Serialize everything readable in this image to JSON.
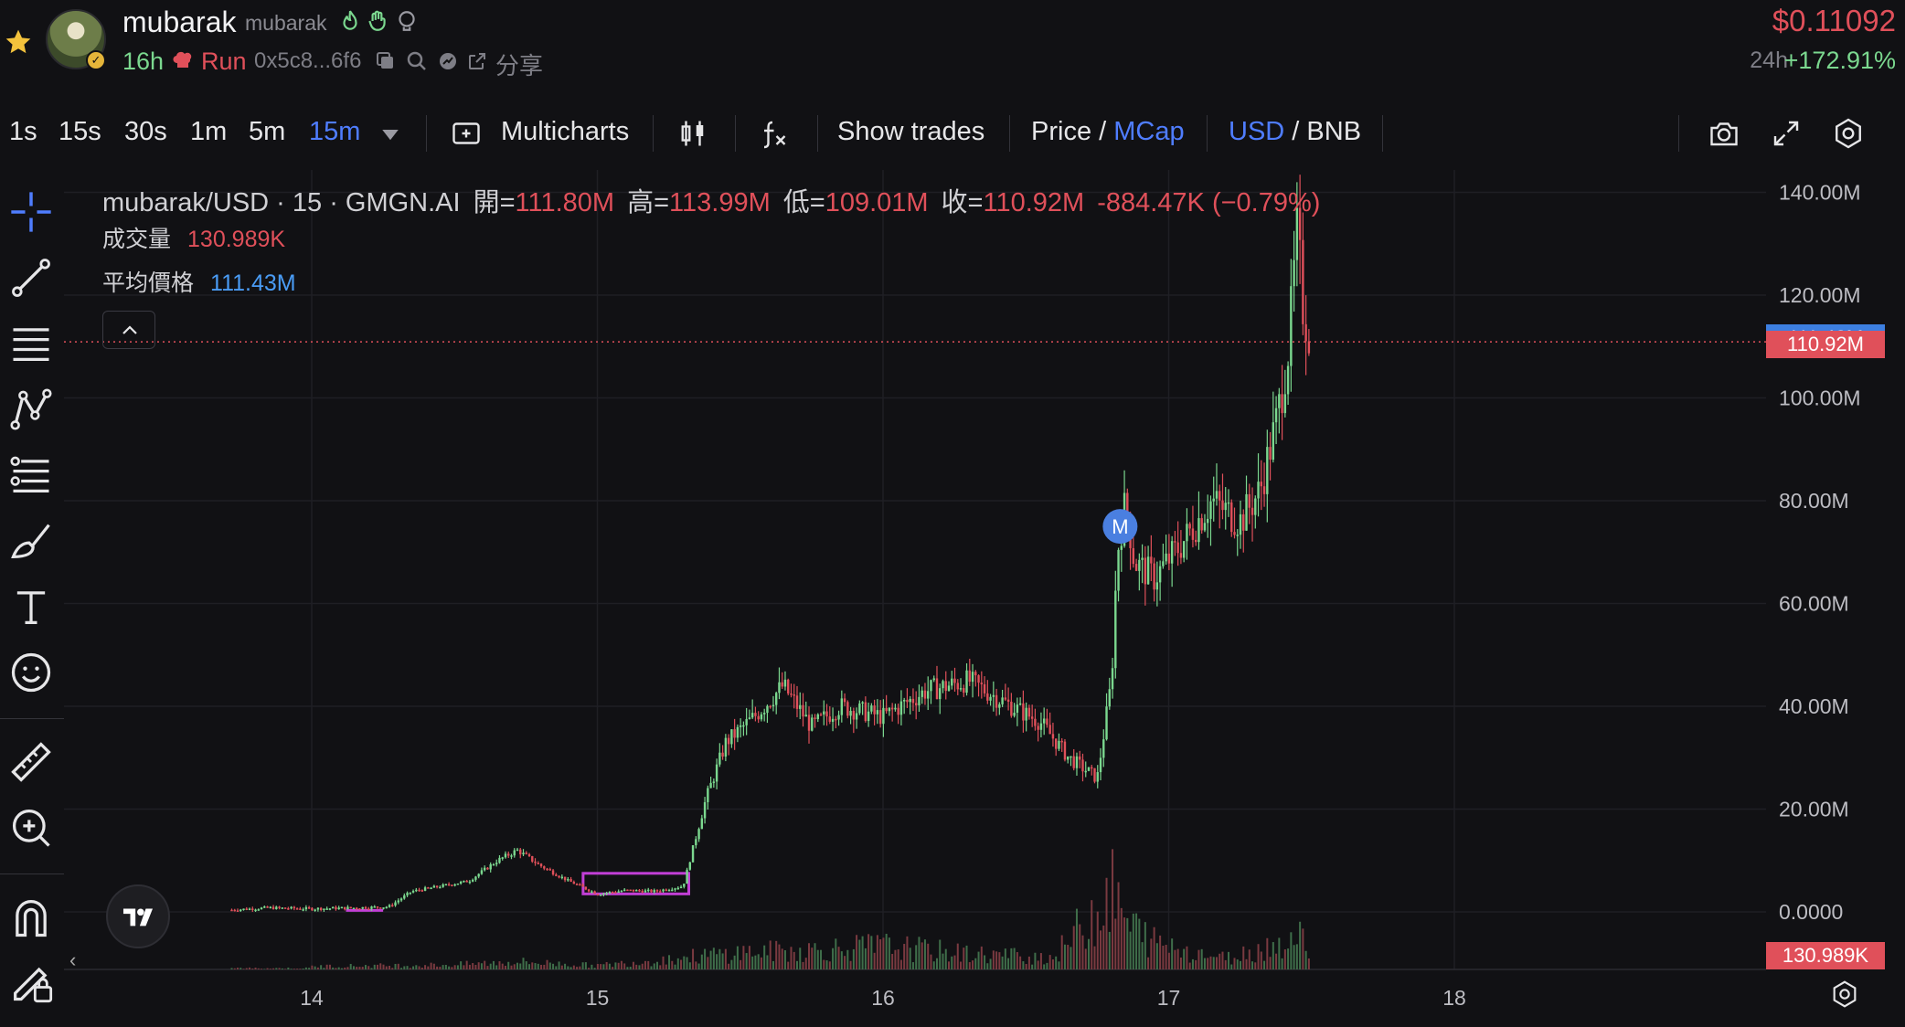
{
  "header": {
    "token_name": "mubarak",
    "token_symbol": "mubarak",
    "age": "16h",
    "run_label": "Run",
    "address": "0x5c8...6f6",
    "share_label": "分享",
    "price": "$0.11092",
    "change_period": "24h",
    "change_value": "+172.91%"
  },
  "toolbar": {
    "intervals": [
      "1s",
      "15s",
      "30s",
      "1m",
      "5m",
      "15m"
    ],
    "active_interval": "15m",
    "multicharts_label": "Multicharts",
    "show_trades_label": "Show trades",
    "price_label": "Price",
    "slash": "/",
    "mcap_label": "MCap",
    "usd_label": "USD",
    "bnb_label": "BNB"
  },
  "legend": {
    "title": "mubarak/USD · 15 · GMGN.AI",
    "open_label": "開=",
    "open_value": "111.80M",
    "high_label": "高=",
    "high_value": "113.99M",
    "low_label": "低=",
    "low_value": "109.01M",
    "close_label": "收=",
    "close_value": "110.92M",
    "change_value": "-884.47K (−0.79%)",
    "volume_label": "成交量",
    "volume_value": "130.989K",
    "avg_label": "平均價格",
    "avg_value": "111.43M"
  },
  "marker": "M",
  "price_tags": {
    "avg": "111.43M",
    "close": "110.92M",
    "volume": "130.989K"
  },
  "colors": {
    "up": "#7bd88f",
    "down": "#e0505a",
    "accent": "#4f7dff",
    "avg_tag": "#3d7fe0",
    "close_tag": "#e0505a",
    "highlight": "#c23fd6"
  },
  "icons": [
    "star-icon",
    "fire-icon",
    "hand-icon",
    "brain-icon",
    "copy-icon",
    "search-icon",
    "sharing-icon",
    "export-icon",
    "camera-icon",
    "expand-icon",
    "settings-icon"
  ],
  "chart_data": {
    "type": "candlestick",
    "x_tick_labels": [
      "14",
      "15",
      "16",
      "17",
      "18"
    ],
    "y_tick_labels": [
      "0.0000",
      "20.00M",
      "40.00M",
      "60.00M",
      "80.00M",
      "100.00M",
      "120.00M",
      "140.00M"
    ],
    "ylim": [
      0,
      140
    ],
    "y_unit": "M",
    "x": [
      13.72,
      13.85,
      14.0,
      14.15,
      14.27,
      14.35,
      14.45,
      14.55,
      14.65,
      14.72,
      14.8,
      14.9,
      15.0,
      15.1,
      15.2,
      15.3,
      15.38,
      15.45,
      15.55,
      15.65,
      15.75,
      15.85,
      16.0,
      16.15,
      16.3,
      16.45,
      16.55,
      16.65,
      16.75,
      16.8,
      16.82,
      16.85,
      16.88,
      16.95,
      17.05,
      17.15,
      17.25,
      17.32,
      17.38,
      17.42,
      17.45,
      17.47,
      17.5
    ],
    "values": [
      0.4,
      0.8,
      0.6,
      0.8,
      1.0,
      4,
      5,
      6,
      10,
      12,
      9,
      6,
      3.5,
      4.2,
      4.0,
      5.0,
      22,
      33,
      38,
      44,
      36,
      40,
      38,
      43,
      45,
      40,
      37,
      30,
      26,
      45,
      70,
      80,
      68,
      65,
      72,
      80,
      76,
      82,
      96,
      110,
      132,
      118,
      110.92
    ],
    "volume_x": [
      14.0,
      14.5,
      14.72,
      15.0,
      15.38,
      15.5,
      15.7,
      16.0,
      16.3,
      16.6,
      16.8,
      16.85,
      16.95,
      17.2,
      17.45
    ],
    "volume_values": [
      4,
      6,
      10,
      5,
      18,
      22,
      24,
      30,
      20,
      16,
      100,
      60,
      35,
      14,
      40
    ],
    "indicators": {
      "avg_price": 111.43,
      "close": 110.92,
      "volume": "130.989K"
    }
  }
}
